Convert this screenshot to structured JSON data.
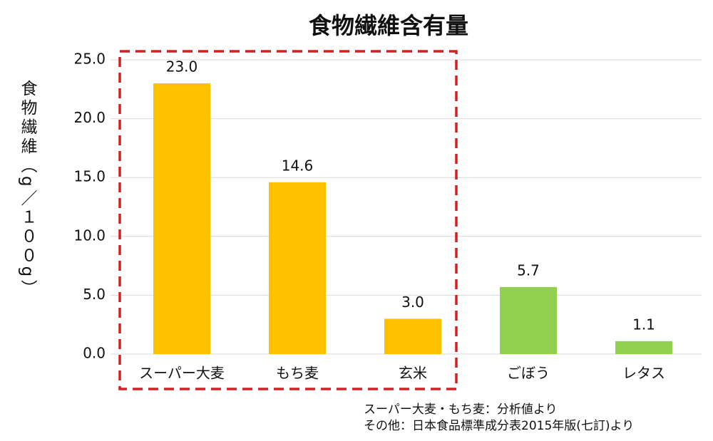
{
  "chart_data": {
    "type": "bar",
    "title": "食物繊維含有量",
    "y_label": "食物繊維（g／１００g）",
    "categories": [
      "スーパー大麦",
      "もち麦",
      "玄米",
      "ごぼう",
      "レタス"
    ],
    "values": [
      23.0,
      14.6,
      3.0,
      5.7,
      1.1
    ],
    "value_labels": [
      "23.0",
      "14.6",
      "3.0",
      "5.7",
      "1.1"
    ],
    "colors": [
      "#ffc000",
      "#ffc000",
      "#ffc000",
      "#92d050",
      "#92d050"
    ],
    "ylim": [
      0,
      25
    ],
    "yticks": [
      {
        "value": 0,
        "label": "0.0"
      },
      {
        "value": 5,
        "label": "5.0"
      },
      {
        "value": 10,
        "label": "10.0"
      },
      {
        "value": 15,
        "label": "15.0"
      },
      {
        "value": 20,
        "label": "20.0"
      },
      {
        "value": 25,
        "label": "25.0"
      }
    ],
    "grid": true,
    "notes": [
      "スーパー大麦・もち麦：分析値より",
      "その他：日本食品標準成分表2015年版(七訂)より"
    ]
  }
}
